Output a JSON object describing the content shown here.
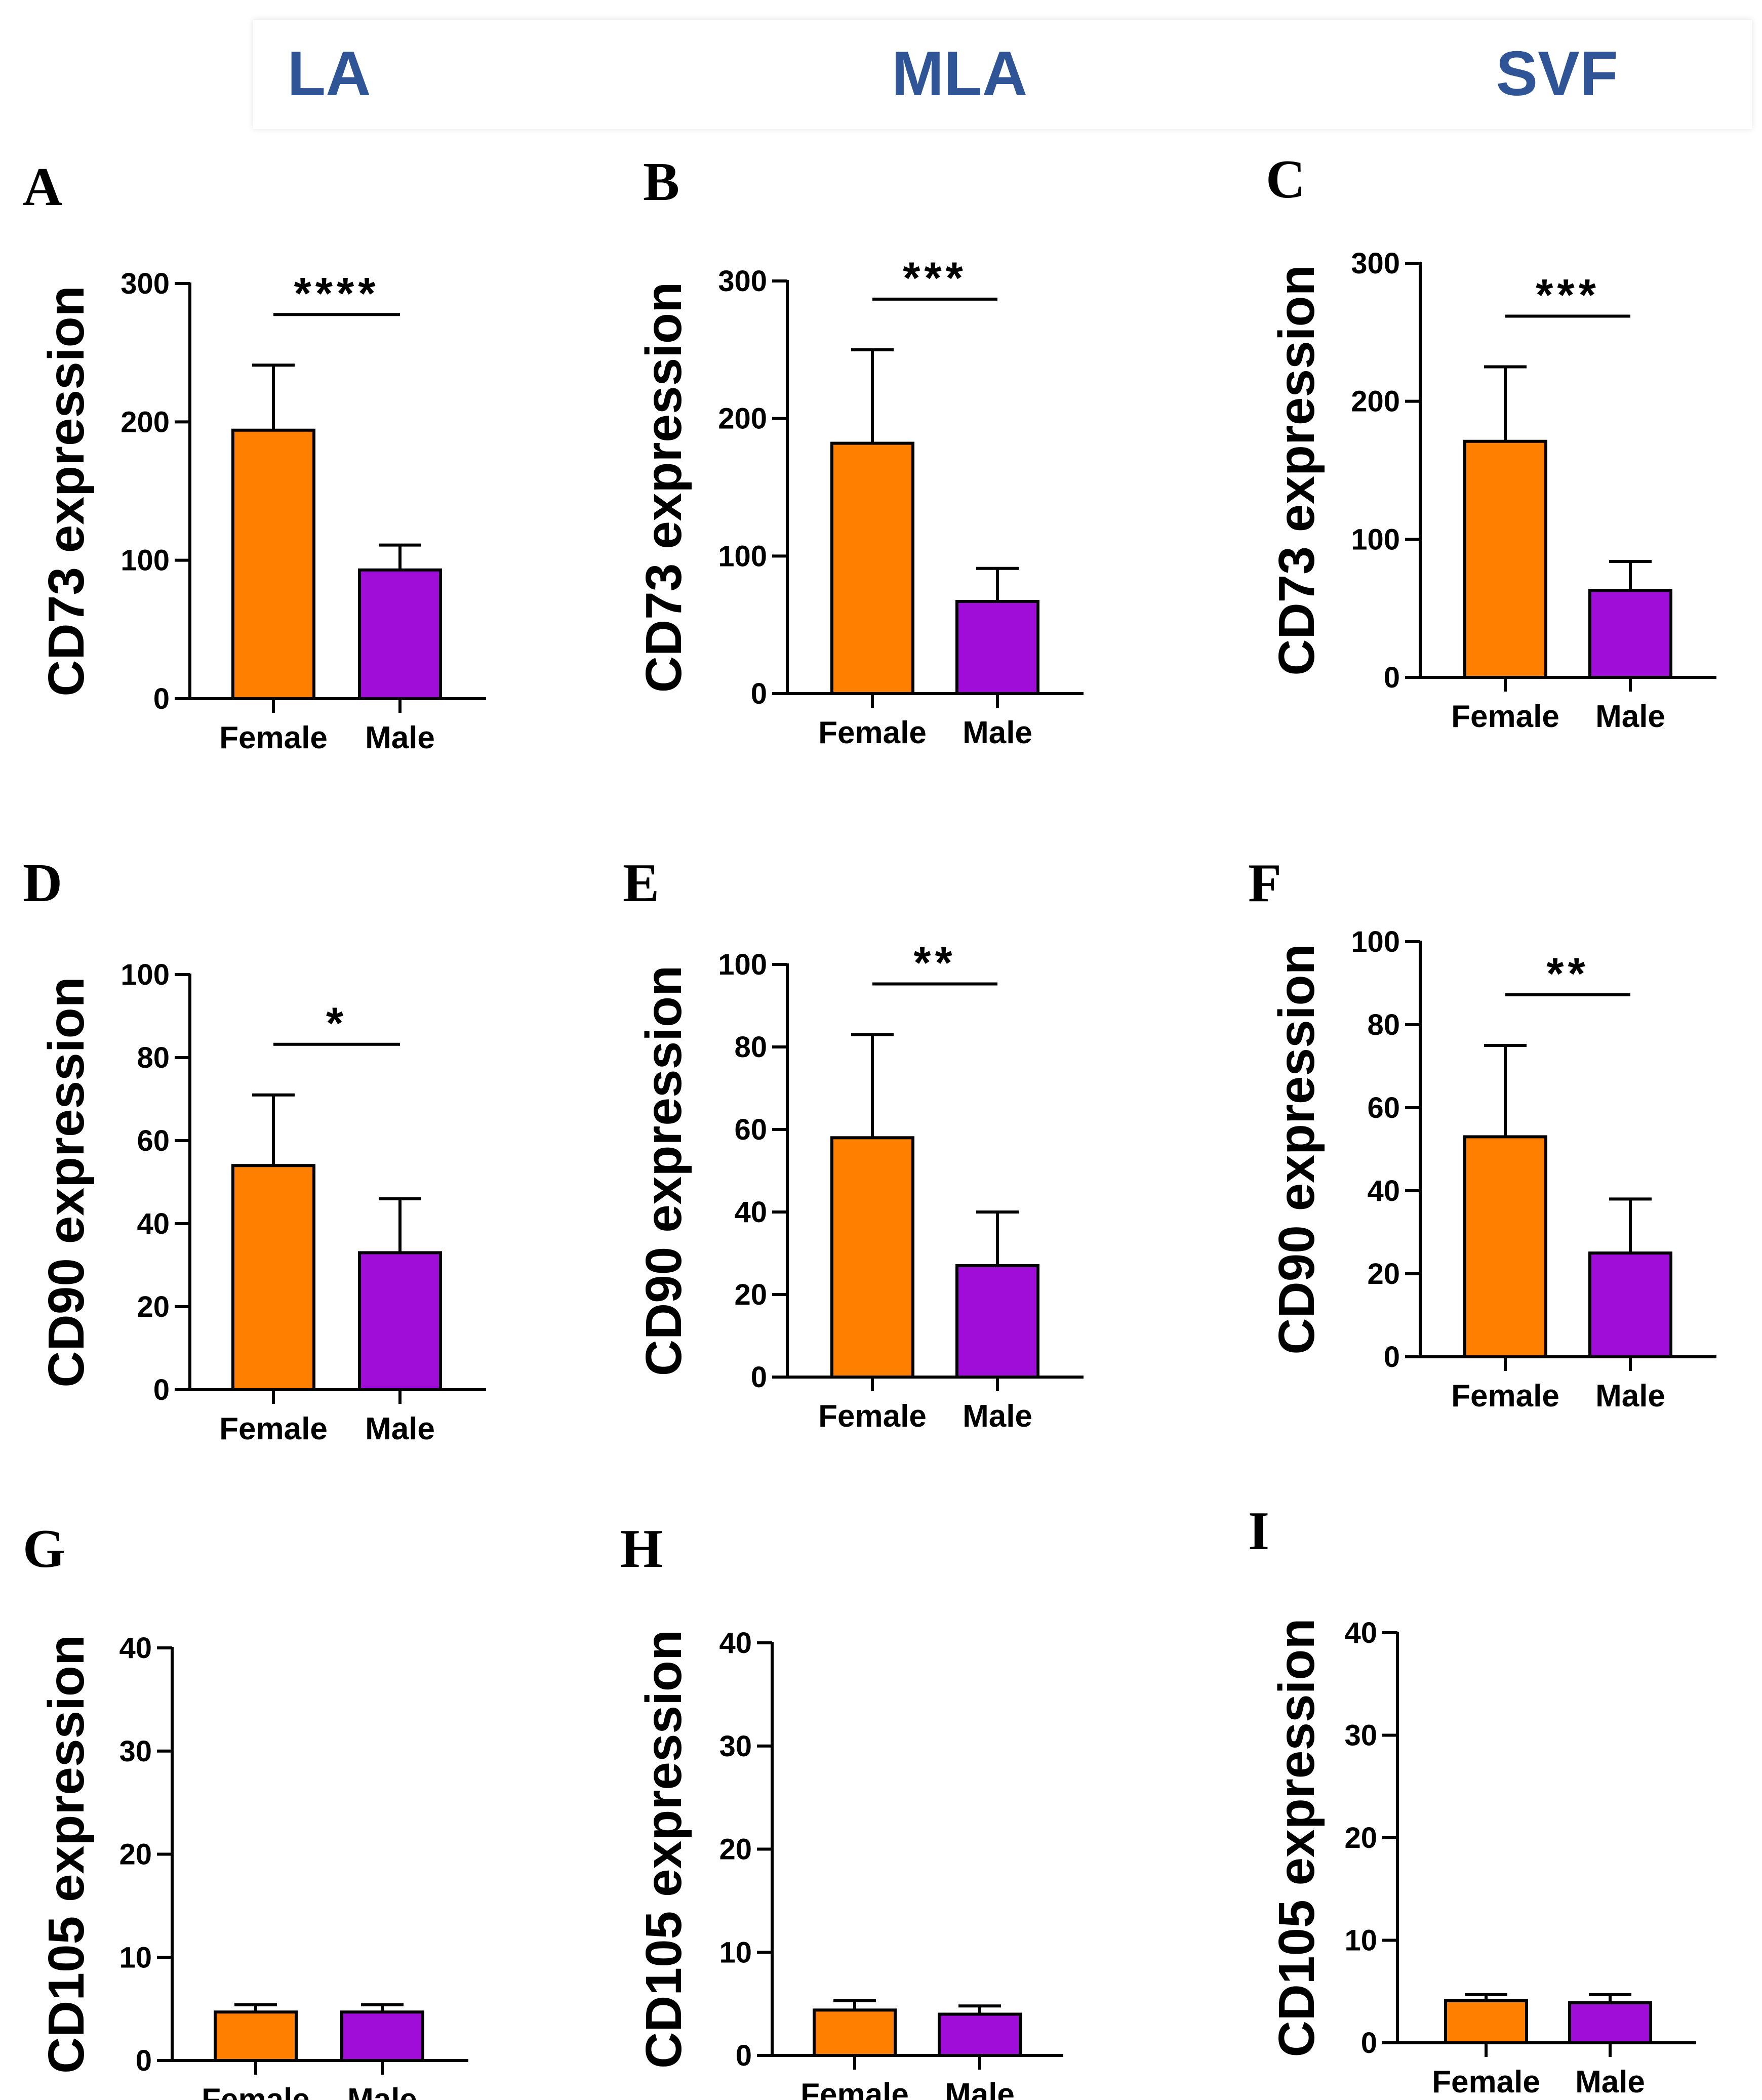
{
  "column_headers": [
    "LA",
    "MLA",
    "SVF"
  ],
  "colors": {
    "female": "#FF7F00",
    "male": "#A00DD9",
    "header": "#2f5597",
    "axis": "#000000"
  },
  "chart_data": [
    {
      "panel": "A",
      "type": "bar",
      "column": "LA",
      "categories": [
        "Female",
        "Male"
      ],
      "values": [
        194,
        93
      ],
      "errors": [
        241,
        111
      ],
      "ylabel": "CD73 expression",
      "yticks": [
        0,
        100,
        200,
        300
      ],
      "ylim": [
        0,
        300
      ],
      "significance": "****"
    },
    {
      "panel": "B",
      "type": "bar",
      "column": "MLA",
      "categories": [
        "Female",
        "Male"
      ],
      "values": [
        182,
        67
      ],
      "errors": [
        250,
        91
      ],
      "ylabel": "CD73 expression",
      "yticks": [
        0,
        100,
        200,
        300
      ],
      "ylim": [
        0,
        300
      ],
      "significance": "***"
    },
    {
      "panel": "C",
      "type": "bar",
      "column": "SVF",
      "categories": [
        "Female",
        "Male"
      ],
      "values": [
        171,
        63
      ],
      "errors": [
        225,
        84
      ],
      "ylabel": "CD73 expression",
      "yticks": [
        0,
        100,
        200,
        300
      ],
      "ylim": [
        0,
        300
      ],
      "significance": "***"
    },
    {
      "panel": "D",
      "type": "bar",
      "column": "LA",
      "categories": [
        "Female",
        "Male"
      ],
      "values": [
        54,
        33
      ],
      "errors": [
        71,
        46
      ],
      "ylabel": "CD90 expression",
      "yticks": [
        0,
        20,
        40,
        60,
        80,
        100
      ],
      "ylim": [
        0,
        100
      ],
      "significance": "*"
    },
    {
      "panel": "E",
      "type": "bar",
      "column": "MLA",
      "categories": [
        "Female",
        "Male"
      ],
      "values": [
        58,
        27
      ],
      "errors": [
        83,
        40
      ],
      "ylabel": "CD90 expression",
      "yticks": [
        0,
        20,
        40,
        60,
        80,
        100
      ],
      "ylim": [
        0,
        100
      ],
      "significance": "**"
    },
    {
      "panel": "F",
      "type": "bar",
      "column": "SVF",
      "categories": [
        "Female",
        "Male"
      ],
      "values": [
        53,
        25
      ],
      "errors": [
        75,
        38
      ],
      "ylabel": "CD90 expression",
      "yticks": [
        0,
        20,
        40,
        60,
        80,
        100
      ],
      "ylim": [
        0,
        100
      ],
      "significance": "**"
    },
    {
      "panel": "G",
      "type": "bar",
      "column": "LA",
      "categories": [
        "Female",
        "Male"
      ],
      "values": [
        4.7,
        4.7
      ],
      "errors": [
        5.4,
        5.4
      ],
      "ylabel": "CD105 expression",
      "yticks": [
        0,
        10,
        20,
        30,
        40
      ],
      "ylim": [
        0,
        40
      ],
      "significance": ""
    },
    {
      "panel": "H",
      "type": "bar",
      "column": "MLA",
      "categories": [
        "Female",
        "Male"
      ],
      "values": [
        4.4,
        4.0
      ],
      "errors": [
        5.3,
        4.8
      ],
      "ylabel": "CD105 expression",
      "yticks": [
        0,
        10,
        20,
        30,
        40
      ],
      "ylim": [
        0,
        40
      ],
      "significance": ""
    },
    {
      "panel": "I",
      "type": "bar",
      "column": "SVF",
      "categories": [
        "Female",
        "Male"
      ],
      "values": [
        4.1,
        3.9
      ],
      "errors": [
        4.7,
        4.7
      ],
      "ylabel": "CD105 expression",
      "yticks": [
        0,
        10,
        20,
        30,
        40
      ],
      "ylim": [
        0,
        40
      ],
      "significance": ""
    }
  ]
}
